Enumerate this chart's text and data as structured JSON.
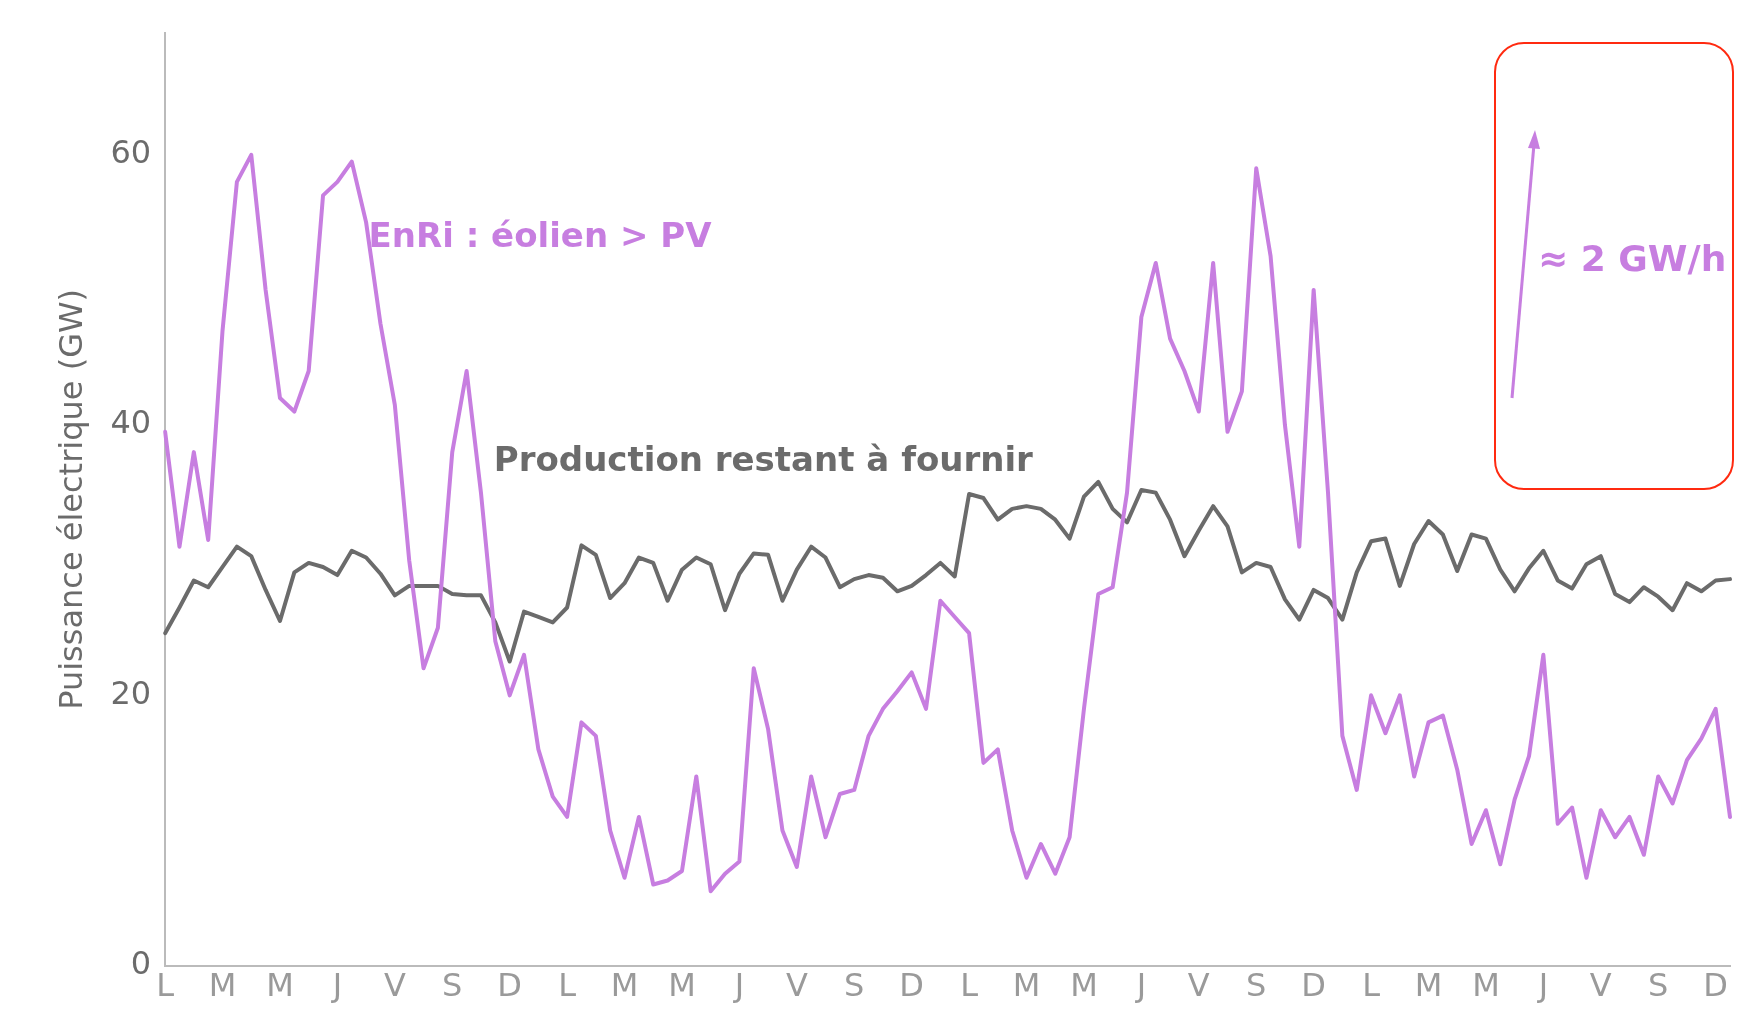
{
  "chart_data": {
    "type": "line",
    "ylabel": "Puissance électrique (GW)",
    "ylim": [
      0,
      69
    ],
    "yticks": [
      0,
      20,
      40,
      60
    ],
    "categories": [
      "L",
      null,
      null,
      null,
      "M",
      null,
      null,
      null,
      "M",
      null,
      null,
      null,
      "J",
      null,
      null,
      null,
      "V",
      null,
      null,
      null,
      "S",
      null,
      null,
      null,
      "D",
      null,
      null,
      null,
      "L",
      null,
      null,
      null,
      "M",
      null,
      null,
      null,
      "M",
      null,
      null,
      null,
      "J",
      null,
      null,
      null,
      "V",
      null,
      null,
      null,
      "S",
      null,
      null,
      null,
      "D",
      null,
      null,
      null,
      "L",
      null,
      null,
      null,
      "M",
      null,
      null,
      null,
      "M",
      null,
      null,
      null,
      "J",
      null,
      null,
      null,
      "V",
      null,
      null,
      null,
      "S",
      null,
      null,
      null,
      "D",
      null,
      null,
      null,
      "L",
      null,
      null,
      null,
      "M",
      null,
      null,
      null,
      "M",
      null,
      null,
      null,
      "J",
      null,
      null,
      null,
      "V",
      null,
      null,
      null,
      "S",
      null,
      null,
      null,
      "D",
      null
    ],
    "grid": false,
    "legend": false,
    "marker": "none",
    "line_style": "solid",
    "annotations": [
      "≈ 2 GW/h"
    ],
    "series": [
      {
        "name": "EnRi : éolien > PV",
        "color": "#c77ee0",
        "values": [
          39.5,
          31,
          38,
          31.5,
          47,
          58,
          60,
          50,
          42,
          41,
          44,
          57,
          58,
          59.5,
          55,
          47.5,
          41.5,
          30,
          22,
          25,
          38,
          44,
          35,
          24,
          20,
          23,
          16,
          12.5,
          11,
          18,
          17,
          10,
          6.5,
          11,
          6,
          6.3,
          7,
          14,
          5.5,
          6.8,
          7.7,
          22,
          17.5,
          10,
          7.3,
          14,
          9.5,
          12.7,
          13,
          17,
          19,
          20.3,
          21.7,
          19,
          27,
          25.8,
          24.6,
          15,
          16,
          10,
          6.5,
          9,
          6.8,
          9.5,
          19,
          27.5,
          28,
          35,
          48,
          52,
          46.4,
          44,
          41,
          52,
          39.5,
          42.5,
          59,
          52.5,
          40,
          31,
          50,
          35,
          17,
          13,
          20,
          17.2,
          20,
          14,
          18,
          18.5,
          14.5,
          9,
          11.5,
          7.5,
          12.3,
          15.5,
          23,
          10.5,
          11.7,
          6.5,
          11.5,
          9.5,
          11,
          8.2,
          14,
          12,
          15.2,
          16.8,
          19,
          11
        ]
      },
      {
        "name": "Production restant à fournir",
        "color": "#6b6b6b",
        "values": [
          24.6,
          26.5,
          28.5,
          28,
          29.5,
          31,
          30.3,
          27.8,
          25.5,
          29.1,
          29.8,
          29.5,
          28.9,
          30.7,
          30.2,
          29,
          27.4,
          28.1,
          28.1,
          28.1,
          27.5,
          27.4,
          27.4,
          25.4,
          22.5,
          26.2,
          25.8,
          25.4,
          26.5,
          31.1,
          30.4,
          27.2,
          28.3,
          30.2,
          29.8,
          27,
          29.3,
          30.2,
          29.7,
          26.3,
          29,
          30.5,
          30.4,
          27,
          29.3,
          31,
          30.2,
          28,
          28.6,
          28.9,
          28.7,
          27.7,
          28.1,
          28.9,
          29.8,
          28.8,
          34.9,
          34.6,
          33,
          33.8,
          34,
          33.8,
          33,
          31.6,
          34.7,
          35.8,
          33.8,
          32.8,
          35.2,
          35,
          33,
          30.3,
          32.2,
          34,
          32.5,
          29.1,
          29.8,
          29.5,
          27.1,
          25.6,
          27.8,
          27.2,
          25.6,
          29.1,
          31.4,
          31.6,
          28.1,
          31.2,
          32.9,
          31.9,
          29.2,
          31.9,
          31.6,
          29.3,
          27.7,
          29.4,
          30.7,
          28.5,
          27.9,
          29.7,
          30.3,
          27.5,
          26.9,
          28,
          27.3,
          26.3,
          28.3,
          27.7,
          28.5,
          28.6
        ]
      }
    ]
  }
}
